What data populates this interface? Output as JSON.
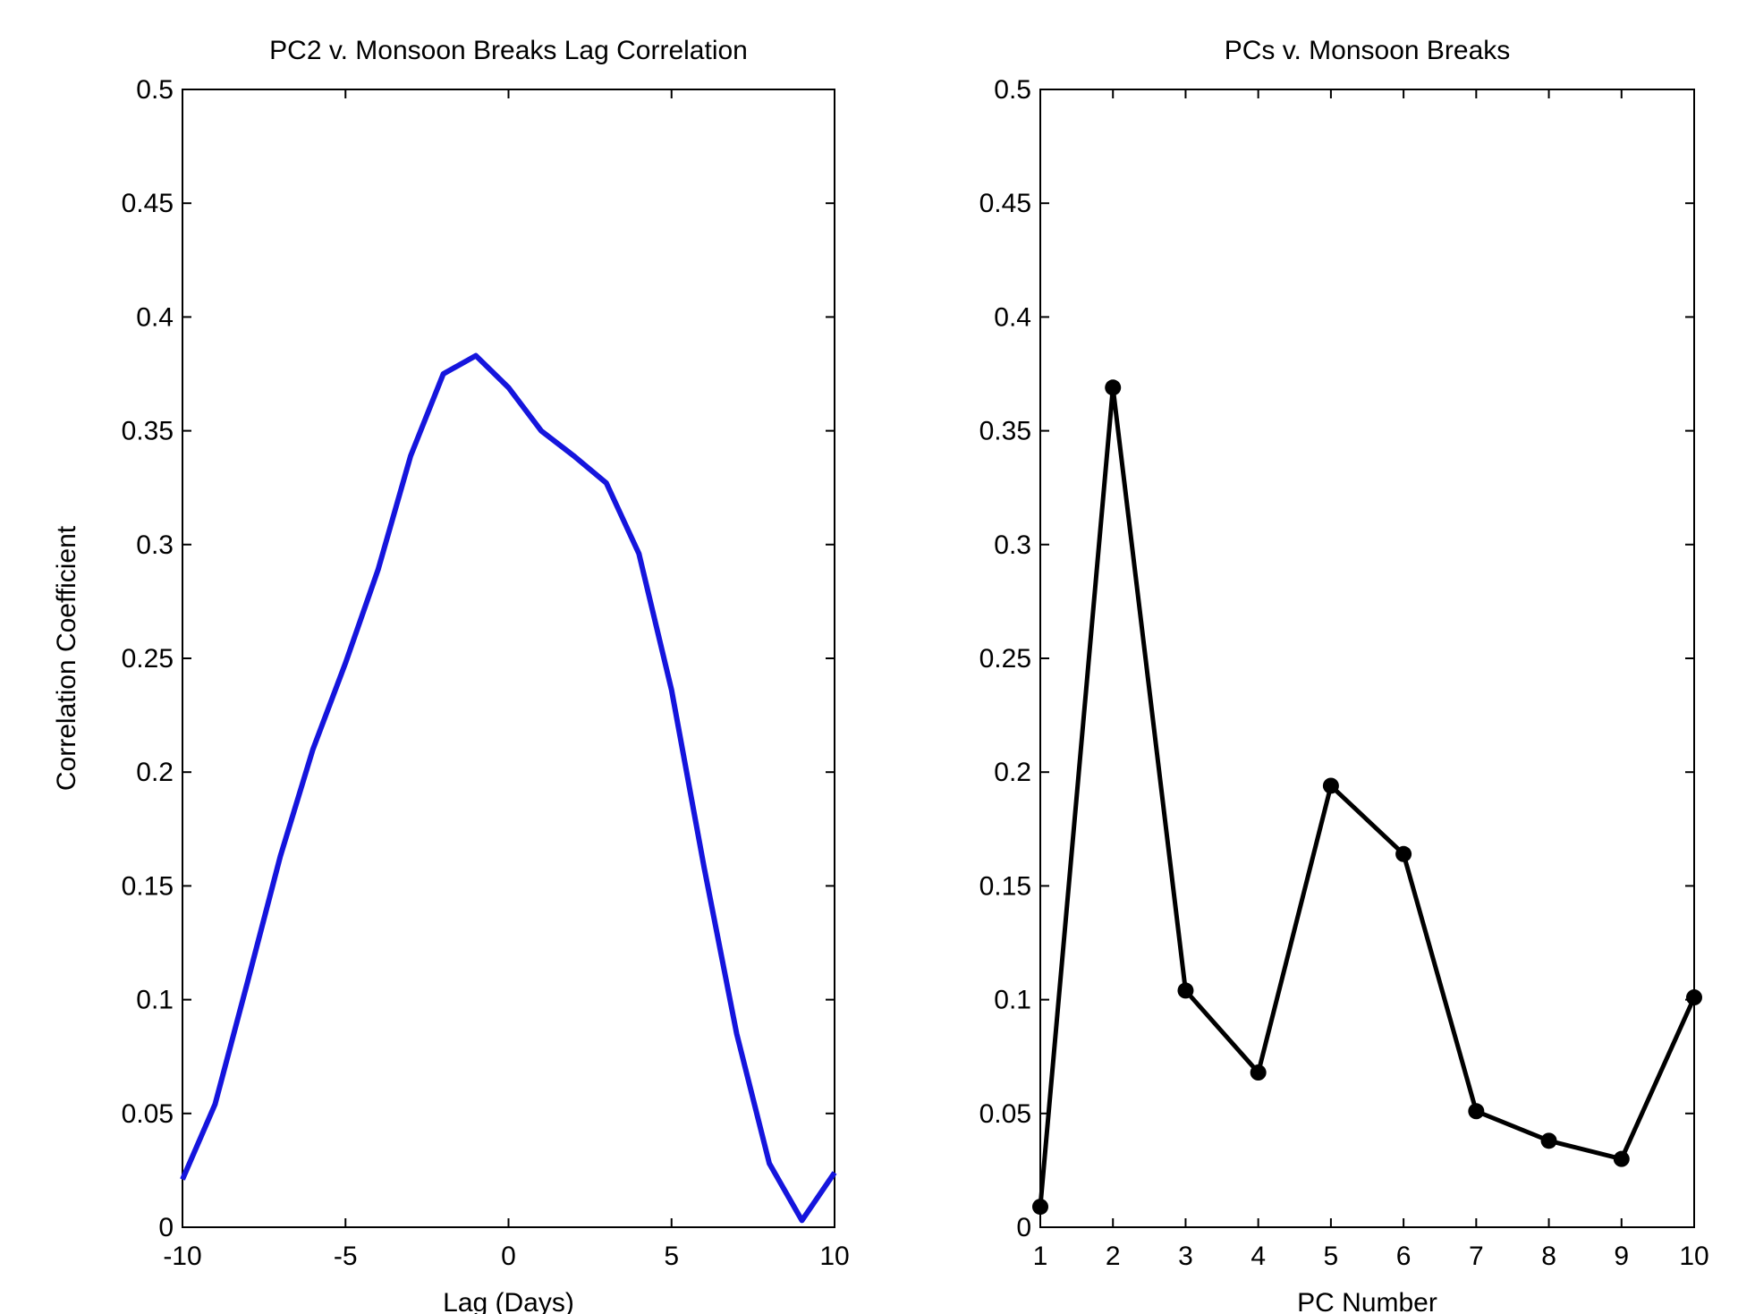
{
  "chart_data": [
    {
      "type": "line",
      "title": "PC2 v. Monsoon Breaks Lag Correlation",
      "xlabel": "Lag (Days)",
      "ylabel": "Correlation Coefficient",
      "xlim": [
        -10,
        10
      ],
      "ylim": [
        0,
        0.5
      ],
      "xticks": [
        -10,
        -5,
        0,
        5,
        10
      ],
      "xtick_labels": [
        "-10",
        "-5",
        "0",
        "5",
        "10"
      ],
      "yticks": [
        0,
        0.05,
        0.1,
        0.15,
        0.2,
        0.25,
        0.3,
        0.35,
        0.4,
        0.45,
        0.5
      ],
      "ytick_labels": [
        "0",
        "0.05",
        "0.1",
        "0.15",
        "0.2",
        "0.25",
        "0.3",
        "0.35",
        "0.4",
        "0.45",
        "0.5"
      ],
      "grid": false,
      "series": [
        {
          "color": "#1515dd",
          "markers": false,
          "x": [
            -10,
            -9,
            -8,
            -7,
            -6,
            -5,
            -4,
            -3,
            -2,
            -1,
            0,
            1,
            2,
            3,
            4,
            5,
            6,
            7,
            8,
            9,
            10
          ],
          "y": [
            0.021,
            0.054,
            0.108,
            0.163,
            0.21,
            0.248,
            0.289,
            0.339,
            0.375,
            0.383,
            0.369,
            0.35,
            0.339,
            0.327,
            0.296,
            0.236,
            0.158,
            0.085,
            0.028,
            0.003,
            0.024
          ]
        }
      ]
    },
    {
      "type": "line",
      "title": "PCs v. Monsoon Breaks",
      "xlabel": "PC Number",
      "ylabel": "",
      "xlim": [
        1,
        10
      ],
      "ylim": [
        0,
        0.5
      ],
      "xticks": [
        1,
        2,
        3,
        4,
        5,
        6,
        7,
        8,
        9,
        10
      ],
      "xtick_labels": [
        "1",
        "2",
        "3",
        "4",
        "5",
        "6",
        "7",
        "8",
        "9",
        "10"
      ],
      "yticks": [
        0,
        0.05,
        0.1,
        0.15,
        0.2,
        0.25,
        0.3,
        0.35,
        0.4,
        0.45,
        0.5
      ],
      "ytick_labels": [
        "0",
        "0.05",
        "0.1",
        "0.15",
        "0.2",
        "0.25",
        "0.3",
        "0.35",
        "0.4",
        "0.45",
        "0.5"
      ],
      "grid": false,
      "series": [
        {
          "color": "#000000",
          "markers": true,
          "x": [
            1,
            2,
            3,
            4,
            5,
            6,
            7,
            8,
            9,
            10
          ],
          "y": [
            0.009,
            0.369,
            0.104,
            0.068,
            0.194,
            0.164,
            0.051,
            0.038,
            0.03,
            0.101
          ]
        }
      ]
    }
  ]
}
